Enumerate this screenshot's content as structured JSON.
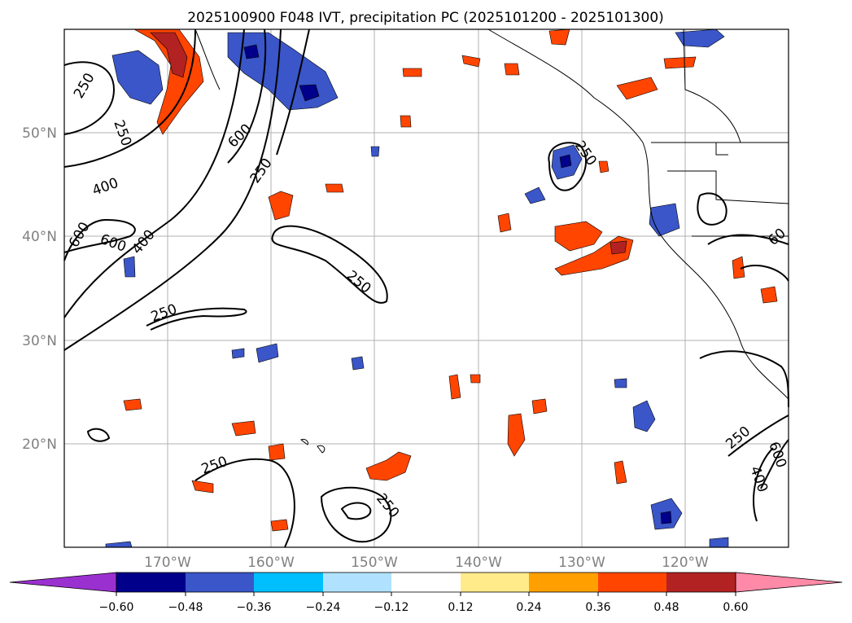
{
  "title": "2025100900 F048 IVT, precipitation PC (2025101200 - 2025101300)",
  "axes": {
    "lat_labels": [
      "50°N",
      "40°N",
      "30°N",
      "20°N"
    ],
    "lon_labels": [
      "170°W",
      "160°W",
      "150°W",
      "140°W",
      "130°W",
      "120°W"
    ]
  },
  "colorbar": {
    "ticks": [
      "−0.60",
      "−0.48",
      "−0.36",
      "−0.24",
      "−0.12",
      "0.12",
      "0.24",
      "0.36",
      "0.48",
      "0.60"
    ],
    "colors": [
      "#9b30d0",
      "#00008b",
      "#3a56c8",
      "#00bfff",
      "#b0e2ff",
      "#ffffff",
      "#ffeb8a",
      "#ffa000",
      "#ff4500",
      "#b22222",
      "#ff8aa8"
    ]
  },
  "contour_labels": {
    "c1": "250",
    "c2": "250",
    "c3": "600",
    "c4": "250",
    "c5": "400",
    "c6": "600",
    "c7": "600",
    "c8": "400",
    "c9": "250",
    "c10": "250",
    "c11": "250",
    "c12": "250",
    "c13": "250",
    "c14": "250",
    "c15": "600",
    "c16": "400",
    "c17": "60"
  },
  "colors": {
    "neg_strong": "#00008b",
    "neg_mid": "#3a56c8",
    "neg_light": "#00bfff",
    "neg_pale": "#b0e2ff",
    "pos_pale": "#ffeb8a",
    "pos_light": "#ffa000",
    "pos_mid": "#ff4500",
    "pos_strong": "#b22222"
  }
}
